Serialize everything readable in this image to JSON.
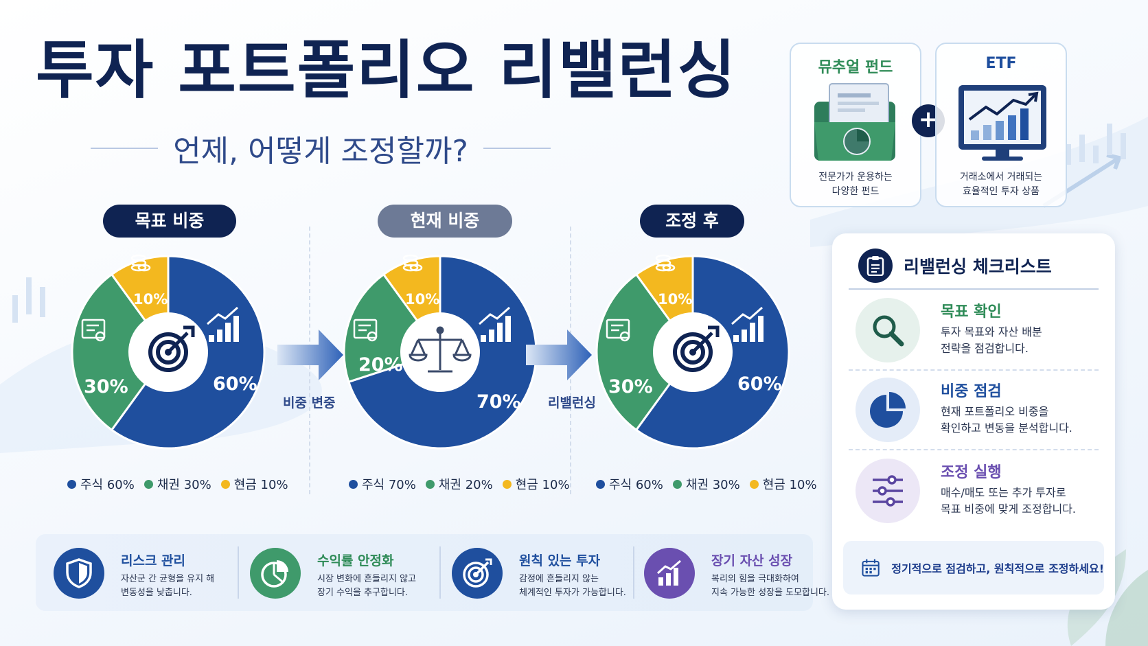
{
  "title": "투자 포트폴리오 리밸런싱",
  "subtitle": "언제, 어떻게 조정할까?",
  "products": [
    {
      "name": "뮤추얼 펀드",
      "desc_line1": "전문가가 운용하는",
      "desc_line2": "다양한 펀드",
      "icon": "folder-pie-icon",
      "color": "#2e8b57"
    },
    {
      "name": "ETF",
      "desc_line1": "거래소에서 거래되는",
      "desc_line2": "효율적인 투자 상품",
      "icon": "monitor-chart-icon",
      "color": "#1f4f9e"
    }
  ],
  "plus": "+",
  "colors": {
    "stock": "#1f4f9e",
    "bond": "#3f9a6b",
    "cash": "#f3b81f",
    "navy": "#0f2352"
  },
  "sections": [
    {
      "label": "목표 비중",
      "pill_color": "#0f2352",
      "center_icon": "target-icon",
      "stock": "60%",
      "bond": "30%",
      "cash": "10%",
      "legend": {
        "stock": "주식 60%",
        "bond": "채권 30%",
        "cash": "현금 10%"
      }
    },
    {
      "label": "현재 비중",
      "pill_color": "#6d7a96",
      "center_icon": "scale-icon",
      "stock": "70%",
      "bond": "20%",
      "cash": "10%",
      "legend": {
        "stock": "주식 70%",
        "bond": "채권 20%",
        "cash": "현금 10%"
      }
    },
    {
      "label": "조정 후",
      "pill_color": "#0f2352",
      "center_icon": "target-icon",
      "stock": "60%",
      "bond": "30%",
      "cash": "10%",
      "legend": {
        "stock": "주식 60%",
        "bond": "채권 30%",
        "cash": "현금 10%"
      }
    }
  ],
  "chart_data": [
    {
      "type": "pie",
      "title": "목표 비중",
      "labels": [
        "주식",
        "채권",
        "현금"
      ],
      "values": [
        60,
        30,
        10
      ]
    },
    {
      "type": "pie",
      "title": "현재 비중",
      "labels": [
        "주식",
        "채권",
        "현금"
      ],
      "values": [
        70,
        20,
        10
      ]
    },
    {
      "type": "pie",
      "title": "조정 후",
      "labels": [
        "주식",
        "채권",
        "현금"
      ],
      "values": [
        60,
        30,
        10
      ]
    }
  ],
  "arrows": {
    "first": "비중 변중",
    "second": "리밸런싱"
  },
  "checklist": {
    "title": "리밸런싱 체크리스트",
    "items": [
      {
        "title": "목표 확인",
        "line1": "투자 목표와 자산 배분",
        "line2": "전략을 점검합니다.",
        "icon": "magnifier-icon",
        "color": "#2e8b57"
      },
      {
        "title": "비중 점검",
        "line1": "현재 포트폴리오 비중을",
        "line2": "확인하고 변동을 분석합니다.",
        "icon": "pie-chart-icon",
        "color": "#1f4f9e"
      },
      {
        "title": "조정 실행",
        "line1": "매수/매도 또는 추가 투자로",
        "line2": "목표 비중에 맞게 조정합니다.",
        "icon": "sliders-icon",
        "color": "#6a4fb0"
      }
    ],
    "footer": "정기적으로 점검하고, 원칙적으로 조정하세요!"
  },
  "benefits": [
    {
      "title": "리스크 관리",
      "line1": "자산군 간 균형을 유지 해",
      "line2": "변동성을 낮춥니다.",
      "icon": "shield-icon",
      "color": "#1f4f9e"
    },
    {
      "title": "수익률 안정화",
      "line1": "시장 변화에 흔들리지 않고",
      "line2": "장기 수익을 추구합니다.",
      "icon": "pie-chart-icon",
      "color": "#2e8b57"
    },
    {
      "title": "원칙 있는 투자",
      "line1": "감정에 흔들리지 않는",
      "line2": "체계적인 투자가 가능합니다.",
      "icon": "target-icon",
      "color": "#1f4f9e"
    },
    {
      "title": "장기 자산 성장",
      "line1": "복리의 힘을 극대화하여",
      "line2": "지속 가능한 성장을 도모합니다.",
      "icon": "growth-chart-icon",
      "color": "#6a4fb0"
    }
  ]
}
